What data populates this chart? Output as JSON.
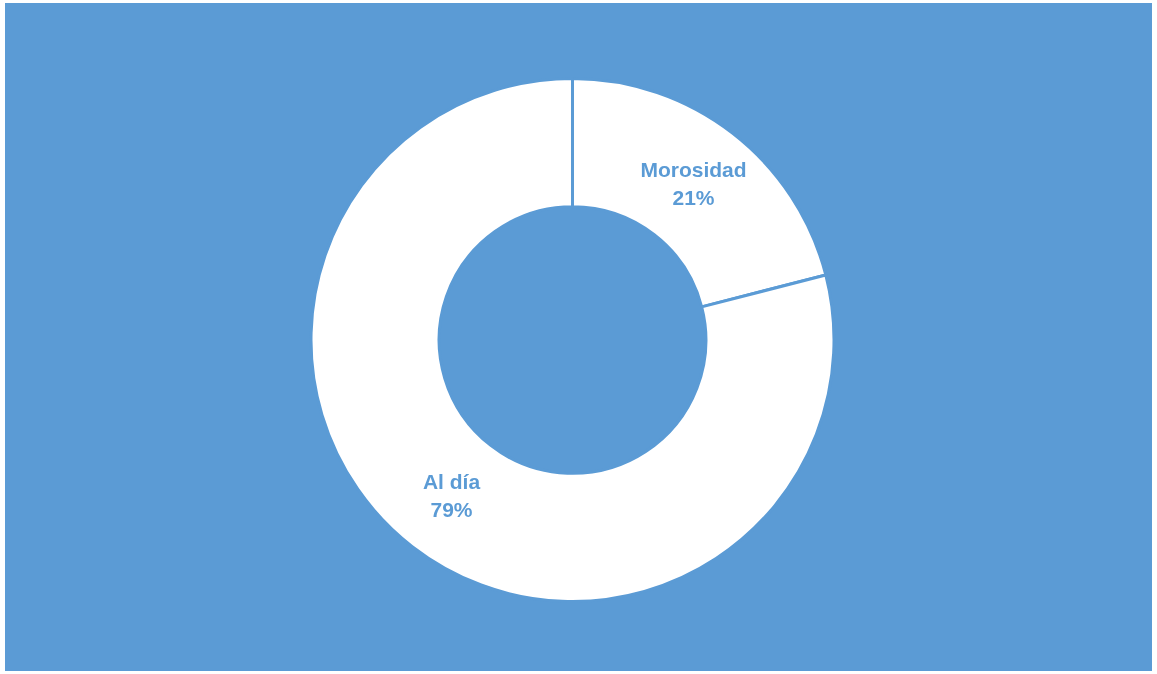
{
  "chart_data": {
    "type": "donut",
    "categories": [
      "Morosidad",
      "Al día"
    ],
    "values": [
      21,
      79
    ],
    "colors": [
      "#ffffff",
      "#ffffff"
    ],
    "value_labels": [
      "21%",
      "79%"
    ],
    "legend": false
  }
}
